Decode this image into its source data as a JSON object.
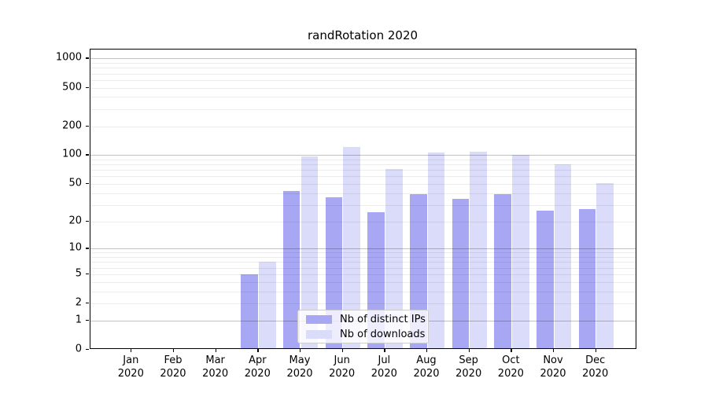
{
  "figure": {
    "title": "randRotation 2020"
  },
  "chart_data": {
    "type": "bar",
    "title": "randRotation 2020",
    "categories": [
      "Jan 2020",
      "Feb 2020",
      "Mar 2020",
      "Apr 2020",
      "May 2020",
      "Jun 2020",
      "Jul 2020",
      "Aug 2020",
      "Sep 2020",
      "Oct 2020",
      "Nov 2020",
      "Dec 2020"
    ],
    "series": [
      {
        "name": "Nb of distinct IPs",
        "color": "#a7a7f3",
        "values": [
          0,
          0,
          0,
          5,
          42,
          36,
          25,
          39,
          35,
          39,
          26,
          27
        ]
      },
      {
        "name": "Nb of downloads",
        "color": "#dbdbfa",
        "values": [
          0,
          0,
          0,
          7,
          97,
          122,
          72,
          106,
          109,
          100,
          80,
          51
        ]
      }
    ],
    "xlabel": "",
    "ylabel": "",
    "yscale": "log1p",
    "ylim": [
      0,
      1230
    ],
    "y_ticks": [
      0,
      1,
      2,
      5,
      10,
      20,
      50,
      100,
      200,
      500,
      1000
    ],
    "y_major_gridlines": [
      1,
      10,
      100,
      1000
    ],
    "y_minor_gridlines": [
      2,
      3,
      4,
      5,
      6,
      7,
      8,
      9,
      20,
      30,
      40,
      50,
      60,
      70,
      80,
      90,
      200,
      300,
      400,
      500,
      600,
      700,
      800,
      900
    ],
    "grid": "horizontal",
    "legend": {
      "position": "lower-center",
      "entries": [
        "Nb of distinct IPs",
        "Nb of downloads"
      ]
    }
  },
  "colors": {
    "background": "#ffffff",
    "spine": "#000000",
    "major_grid": "#c2c2c2",
    "minor_grid": "#ececec",
    "bar_distinct_ips": "#a7a7f3",
    "bar_downloads": "#dbdbfa",
    "legend_border": "#cccccc",
    "text": "#000000"
  }
}
